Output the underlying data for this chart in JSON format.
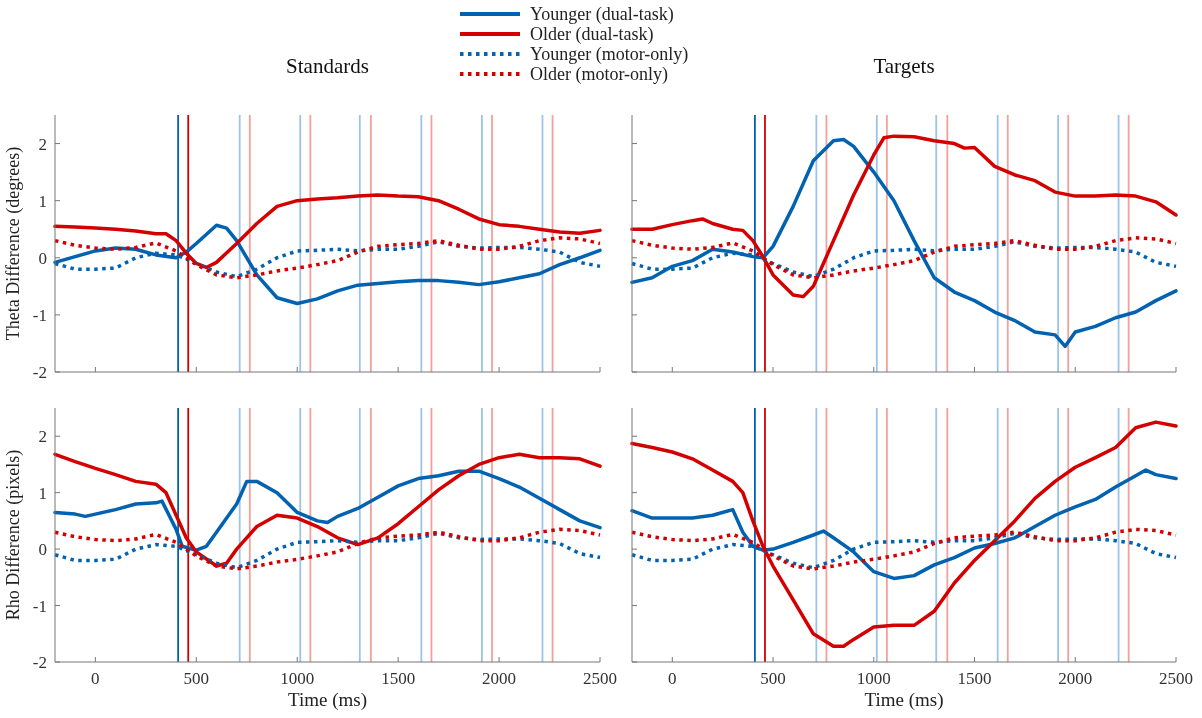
{
  "chart_data": [
    {
      "type": "line",
      "title": "Standards",
      "ylabel": "Theta Difference (degrees)",
      "xlim": [
        -200,
        2500
      ],
      "xticks": [
        0,
        500,
        1000,
        1500,
        2000,
        2500
      ],
      "ylim": [
        -2,
        2.5
      ],
      "yticks": [
        -2,
        -1,
        0,
        1,
        2
      ],
      "tick_labels": "y",
      "legend": "top",
      "grid": false,
      "ref_lines": [
        {
          "axis": "x",
          "value": 410,
          "color": "#0062b0"
        },
        {
          "axis": "x",
          "value": 460,
          "color": "#d40000"
        },
        {
          "axis": "x",
          "value": 715,
          "color": "#9dc3e6"
        },
        {
          "axis": "x",
          "value": 765,
          "color": "#f4a09a"
        },
        {
          "axis": "x",
          "value": 1015,
          "color": "#9dc3e6"
        },
        {
          "axis": "x",
          "value": 1065,
          "color": "#f4a09a"
        },
        {
          "axis": "x",
          "value": 1310,
          "color": "#9dc3e6"
        },
        {
          "axis": "x",
          "value": 1365,
          "color": "#f4a09a"
        },
        {
          "axis": "x",
          "value": 1615,
          "color": "#9dc3e6"
        },
        {
          "axis": "x",
          "value": 1665,
          "color": "#f4a09a"
        },
        {
          "axis": "x",
          "value": 1915,
          "color": "#9dc3e6"
        },
        {
          "axis": "x",
          "value": 1965,
          "color": "#f4a09a"
        },
        {
          "axis": "x",
          "value": 2215,
          "color": "#9dc3e6"
        },
        {
          "axis": "x",
          "value": 2265,
          "color": "#f4a09a"
        }
      ],
      "series": [
        {
          "name": "Younger (dual-task)",
          "color": "#0062b0",
          "line_style": "solid",
          "x": [
            -200,
            -100,
            0,
            100,
            200,
            300,
            400,
            450,
            500,
            600,
            650,
            700,
            800,
            900,
            1000,
            1100,
            1200,
            1300,
            1400,
            1500,
            1600,
            1700,
            1800,
            1900,
            2000,
            2100,
            2200,
            2300,
            2400,
            2500
          ],
          "values": [
            -0.08,
            0.02,
            0.12,
            0.17,
            0.15,
            0.05,
            0.0,
            0.1,
            0.25,
            0.57,
            0.52,
            0.3,
            -0.3,
            -0.7,
            -0.8,
            -0.72,
            -0.58,
            -0.48,
            -0.45,
            -0.42,
            -0.4,
            -0.4,
            -0.43,
            -0.47,
            -0.42,
            -0.35,
            -0.28,
            -0.12,
            0.0,
            0.13
          ]
        },
        {
          "name": "Older (dual-task)",
          "color": "#d40000",
          "line_style": "solid",
          "x": [
            -200,
            -100,
            0,
            100,
            200,
            300,
            350,
            400,
            450,
            500,
            550,
            600,
            700,
            800,
            900,
            1000,
            1100,
            1200,
            1300,
            1400,
            1500,
            1600,
            1700,
            1800,
            1900,
            2000,
            2100,
            2200,
            2300,
            2400,
            2500
          ],
          "values": [
            0.55,
            0.54,
            0.52,
            0.5,
            0.47,
            0.42,
            0.42,
            0.3,
            0.08,
            -0.1,
            -0.17,
            -0.08,
            0.25,
            0.6,
            0.9,
            1.0,
            1.03,
            1.05,
            1.08,
            1.1,
            1.08,
            1.07,
            1.0,
            0.85,
            0.68,
            0.58,
            0.55,
            0.5,
            0.45,
            0.43,
            0.48
          ]
        },
        {
          "name": "Younger (motor-only)",
          "color": "#0062b0",
          "line_style": "dotted",
          "x": [
            -200,
            -100,
            0,
            100,
            200,
            300,
            400,
            500,
            600,
            700,
            800,
            900,
            1000,
            1100,
            1200,
            1300,
            1400,
            1500,
            1600,
            1700,
            1800,
            1900,
            2000,
            2100,
            2200,
            2300,
            2400,
            2500
          ],
          "values": [
            -0.1,
            -0.2,
            -0.2,
            -0.18,
            0.0,
            0.08,
            0.05,
            -0.1,
            -0.25,
            -0.33,
            -0.2,
            0.0,
            0.12,
            0.13,
            0.15,
            0.12,
            0.15,
            0.15,
            0.2,
            0.28,
            0.2,
            0.17,
            0.18,
            0.18,
            0.15,
            0.1,
            -0.08,
            -0.15
          ]
        },
        {
          "name": "Older (motor-only)",
          "color": "#d40000",
          "line_style": "dotted",
          "x": [
            -200,
            -100,
            0,
            100,
            200,
            300,
            400,
            500,
            600,
            700,
            800,
            900,
            1000,
            1100,
            1200,
            1300,
            1400,
            1500,
            1600,
            1700,
            1800,
            1900,
            2000,
            2100,
            2200,
            2300,
            2400,
            2500
          ],
          "values": [
            0.3,
            0.22,
            0.17,
            0.15,
            0.18,
            0.26,
            0.12,
            -0.12,
            -0.3,
            -0.35,
            -0.3,
            -0.23,
            -0.18,
            -0.12,
            -0.05,
            0.1,
            0.2,
            0.23,
            0.25,
            0.3,
            0.22,
            0.15,
            0.15,
            0.2,
            0.3,
            0.35,
            0.33,
            0.25
          ]
        }
      ]
    },
    {
      "type": "line",
      "title": "Targets",
      "xlim": [
        -200,
        2500
      ],
      "xticks": [
        0,
        500,
        1000,
        1500,
        2000,
        2500
      ],
      "ylim": [
        -2,
        2.5
      ],
      "yticks": [
        -2,
        -1,
        0,
        1,
        2
      ],
      "tick_labels": false,
      "grid": false,
      "ref_lines": [
        {
          "axis": "x",
          "value": 410,
          "color": "#0062b0"
        },
        {
          "axis": "x",
          "value": 460,
          "color": "#d40000"
        },
        {
          "axis": "x",
          "value": 715,
          "color": "#9dc3e6"
        },
        {
          "axis": "x",
          "value": 765,
          "color": "#f4a09a"
        },
        {
          "axis": "x",
          "value": 1015,
          "color": "#9dc3e6"
        },
        {
          "axis": "x",
          "value": 1065,
          "color": "#f4a09a"
        },
        {
          "axis": "x",
          "value": 1310,
          "color": "#9dc3e6"
        },
        {
          "axis": "x",
          "value": 1365,
          "color": "#f4a09a"
        },
        {
          "axis": "x",
          "value": 1615,
          "color": "#9dc3e6"
        },
        {
          "axis": "x",
          "value": 1665,
          "color": "#f4a09a"
        },
        {
          "axis": "x",
          "value": 1915,
          "color": "#9dc3e6"
        },
        {
          "axis": "x",
          "value": 1965,
          "color": "#f4a09a"
        },
        {
          "axis": "x",
          "value": 2215,
          "color": "#9dc3e6"
        },
        {
          "axis": "x",
          "value": 2265,
          "color": "#f4a09a"
        }
      ],
      "series": [
        {
          "color": "#0062b0",
          "line_style": "solid",
          "x": [
            -200,
            -100,
            0,
            100,
            200,
            300,
            400,
            450,
            500,
            600,
            700,
            800,
            850,
            900,
            1000,
            1100,
            1200,
            1300,
            1400,
            1500,
            1600,
            1700,
            1800,
            1900,
            1950,
            2000,
            2100,
            2200,
            2300,
            2400,
            2500
          ],
          "values": [
            -0.43,
            -0.35,
            -0.15,
            -0.05,
            0.15,
            0.1,
            0.02,
            0.0,
            0.2,
            0.9,
            1.7,
            2.05,
            2.07,
            1.95,
            1.5,
            1.0,
            0.3,
            -0.35,
            -0.6,
            -0.75,
            -0.95,
            -1.1,
            -1.3,
            -1.35,
            -1.55,
            -1.3,
            -1.2,
            -1.05,
            -0.95,
            -0.75,
            -0.58
          ]
        },
        {
          "color": "#d40000",
          "line_style": "solid",
          "x": [
            -200,
            -100,
            0,
            100,
            150,
            200,
            300,
            350,
            400,
            450,
            500,
            600,
            650,
            700,
            800,
            900,
            1000,
            1050,
            1100,
            1200,
            1300,
            1400,
            1450,
            1500,
            1600,
            1700,
            1800,
            1900,
            2000,
            2100,
            2200,
            2300,
            2400,
            2500
          ],
          "values": [
            0.5,
            0.5,
            0.58,
            0.65,
            0.68,
            0.6,
            0.5,
            0.48,
            0.3,
            0.02,
            -0.3,
            -0.65,
            -0.68,
            -0.5,
            0.3,
            1.1,
            1.8,
            2.1,
            2.13,
            2.12,
            2.05,
            2.0,
            1.92,
            1.93,
            1.6,
            1.45,
            1.35,
            1.15,
            1.08,
            1.08,
            1.1,
            1.08,
            0.98,
            0.75
          ]
        },
        {
          "color": "#0062b0",
          "line_style": "dotted",
          "x": [
            -200,
            -100,
            0,
            100,
            200,
            300,
            400,
            500,
            600,
            700,
            800,
            900,
            1000,
            1100,
            1200,
            1300,
            1400,
            1500,
            1600,
            1700,
            1800,
            1900,
            2000,
            2100,
            2200,
            2300,
            2400,
            2500
          ],
          "values": [
            -0.1,
            -0.2,
            -0.2,
            -0.18,
            0.0,
            0.08,
            0.05,
            -0.1,
            -0.25,
            -0.33,
            -0.2,
            0.0,
            0.12,
            0.13,
            0.15,
            0.12,
            0.15,
            0.15,
            0.2,
            0.28,
            0.2,
            0.17,
            0.18,
            0.18,
            0.15,
            0.1,
            -0.08,
            -0.15
          ]
        },
        {
          "color": "#d40000",
          "line_style": "dotted",
          "x": [
            -200,
            -100,
            0,
            100,
            200,
            300,
            400,
            500,
            600,
            700,
            800,
            900,
            1000,
            1100,
            1200,
            1300,
            1400,
            1500,
            1600,
            1700,
            1800,
            1900,
            2000,
            2100,
            2200,
            2300,
            2400,
            2500
          ],
          "values": [
            0.3,
            0.22,
            0.17,
            0.15,
            0.18,
            0.26,
            0.12,
            -0.12,
            -0.3,
            -0.35,
            -0.3,
            -0.23,
            -0.18,
            -0.12,
            -0.05,
            0.1,
            0.2,
            0.23,
            0.25,
            0.3,
            0.22,
            0.15,
            0.15,
            0.2,
            0.3,
            0.35,
            0.33,
            0.25
          ]
        }
      ]
    },
    {
      "type": "line",
      "xlabel": "Time (ms)",
      "ylabel": "Rho Difference (pixels)",
      "xlim": [
        -200,
        2500
      ],
      "xticks": [
        0,
        500,
        1000,
        1500,
        2000,
        2500
      ],
      "ylim": [
        -2,
        2.5
      ],
      "yticks": [
        -2,
        -1,
        0,
        1,
        2
      ],
      "grid": false,
      "ref_lines": [
        {
          "axis": "x",
          "value": 410,
          "color": "#0062b0"
        },
        {
          "axis": "x",
          "value": 460,
          "color": "#d40000"
        },
        {
          "axis": "x",
          "value": 715,
          "color": "#9dc3e6"
        },
        {
          "axis": "x",
          "value": 765,
          "color": "#f4a09a"
        },
        {
          "axis": "x",
          "value": 1015,
          "color": "#9dc3e6"
        },
        {
          "axis": "x",
          "value": 1065,
          "color": "#f4a09a"
        },
        {
          "axis": "x",
          "value": 1310,
          "color": "#9dc3e6"
        },
        {
          "axis": "x",
          "value": 1365,
          "color": "#f4a09a"
        },
        {
          "axis": "x",
          "value": 1615,
          "color": "#9dc3e6"
        },
        {
          "axis": "x",
          "value": 1665,
          "color": "#f4a09a"
        },
        {
          "axis": "x",
          "value": 1915,
          "color": "#9dc3e6"
        },
        {
          "axis": "x",
          "value": 1965,
          "color": "#f4a09a"
        },
        {
          "axis": "x",
          "value": 2215,
          "color": "#9dc3e6"
        },
        {
          "axis": "x",
          "value": 2265,
          "color": "#f4a09a"
        }
      ],
      "series": [
        {
          "color": "#0062b0",
          "line_style": "solid",
          "x": [
            -200,
            -100,
            -50,
            0,
            100,
            200,
            300,
            330,
            400,
            430,
            500,
            550,
            600,
            700,
            750,
            800,
            900,
            1000,
            1100,
            1150,
            1200,
            1300,
            1400,
            1500,
            1600,
            1700,
            1800,
            1900,
            2000,
            2100,
            2200,
            2300,
            2400,
            2500
          ],
          "values": [
            0.65,
            0.62,
            0.58,
            0.62,
            0.7,
            0.8,
            0.82,
            0.85,
            0.35,
            0.05,
            -0.02,
            0.05,
            0.3,
            0.8,
            1.2,
            1.2,
            1.0,
            0.65,
            0.5,
            0.47,
            0.58,
            0.72,
            0.92,
            1.12,
            1.25,
            1.3,
            1.38,
            1.38,
            1.25,
            1.1,
            0.9,
            0.7,
            0.5,
            0.38
          ]
        },
        {
          "color": "#d40000",
          "line_style": "solid",
          "x": [
            -200,
            -100,
            0,
            100,
            200,
            300,
            350,
            400,
            450,
            500,
            600,
            650,
            700,
            800,
            900,
            1000,
            1100,
            1200,
            1300,
            1400,
            1500,
            1600,
            1700,
            1800,
            1900,
            2000,
            2100,
            2200,
            2300,
            2400,
            2500
          ],
          "values": [
            1.68,
            1.55,
            1.43,
            1.32,
            1.2,
            1.15,
            1.0,
            0.6,
            0.2,
            -0.05,
            -0.3,
            -0.25,
            0.0,
            0.4,
            0.6,
            0.55,
            0.4,
            0.2,
            0.08,
            0.2,
            0.45,
            0.75,
            1.05,
            1.3,
            1.5,
            1.62,
            1.68,
            1.62,
            1.62,
            1.6,
            1.47
          ]
        },
        {
          "color": "#0062b0",
          "line_style": "dotted",
          "x": [
            -200,
            -100,
            0,
            100,
            200,
            300,
            400,
            500,
            600,
            700,
            800,
            900,
            1000,
            1100,
            1200,
            1300,
            1400,
            1500,
            1600,
            1700,
            1800,
            1900,
            2000,
            2100,
            2200,
            2300,
            2400,
            2500
          ],
          "values": [
            -0.1,
            -0.2,
            -0.2,
            -0.18,
            0.0,
            0.08,
            0.05,
            -0.1,
            -0.25,
            -0.33,
            -0.2,
            0.0,
            0.12,
            0.13,
            0.15,
            0.12,
            0.15,
            0.15,
            0.2,
            0.28,
            0.2,
            0.17,
            0.18,
            0.18,
            0.15,
            0.1,
            -0.08,
            -0.15
          ]
        },
        {
          "color": "#d40000",
          "line_style": "dotted",
          "x": [
            -200,
            -100,
            0,
            100,
            200,
            300,
            400,
            500,
            600,
            700,
            800,
            900,
            1000,
            1100,
            1200,
            1300,
            1400,
            1500,
            1600,
            1700,
            1800,
            1900,
            2000,
            2100,
            2200,
            2300,
            2400,
            2500
          ],
          "values": [
            0.3,
            0.22,
            0.17,
            0.15,
            0.18,
            0.26,
            0.12,
            -0.12,
            -0.3,
            -0.35,
            -0.3,
            -0.23,
            -0.18,
            -0.12,
            -0.05,
            0.1,
            0.2,
            0.23,
            0.25,
            0.3,
            0.22,
            0.15,
            0.15,
            0.2,
            0.3,
            0.35,
            0.33,
            0.25
          ]
        }
      ]
    },
    {
      "type": "line",
      "xlabel": "Time (ms)",
      "xlim": [
        -200,
        2500
      ],
      "xticks": [
        0,
        500,
        1000,
        1500,
        2000,
        2500
      ],
      "ylim": [
        -2,
        2.5
      ],
      "yticks": [
        -2,
        -1,
        0,
        1,
        2
      ],
      "tick_labels": "x",
      "grid": false,
      "ref_lines": [
        {
          "axis": "x",
          "value": 410,
          "color": "#0062b0"
        },
        {
          "axis": "x",
          "value": 460,
          "color": "#d40000"
        },
        {
          "axis": "x",
          "value": 715,
          "color": "#9dc3e6"
        },
        {
          "axis": "x",
          "value": 765,
          "color": "#f4a09a"
        },
        {
          "axis": "x",
          "value": 1015,
          "color": "#9dc3e6"
        },
        {
          "axis": "x",
          "value": 1065,
          "color": "#f4a09a"
        },
        {
          "axis": "x",
          "value": 1310,
          "color": "#9dc3e6"
        },
        {
          "axis": "x",
          "value": 1365,
          "color": "#f4a09a"
        },
        {
          "axis": "x",
          "value": 1615,
          "color": "#9dc3e6"
        },
        {
          "axis": "x",
          "value": 1665,
          "color": "#f4a09a"
        },
        {
          "axis": "x",
          "value": 1915,
          "color": "#9dc3e6"
        },
        {
          "axis": "x",
          "value": 1965,
          "color": "#f4a09a"
        },
        {
          "axis": "x",
          "value": 2215,
          "color": "#9dc3e6"
        },
        {
          "axis": "x",
          "value": 2265,
          "color": "#f4a09a"
        }
      ],
      "series": [
        {
          "color": "#0062b0",
          "line_style": "solid",
          "x": [
            -200,
            -100,
            0,
            100,
            200,
            300,
            350,
            400,
            450,
            500,
            600,
            700,
            750,
            800,
            900,
            1000,
            1100,
            1200,
            1300,
            1400,
            1500,
            1600,
            1700,
            1800,
            1900,
            2000,
            2100,
            2200,
            2300,
            2350,
            2400,
            2500
          ],
          "values": [
            0.68,
            0.55,
            0.55,
            0.55,
            0.6,
            0.7,
            0.3,
            0.05,
            -0.02,
            0.0,
            0.12,
            0.25,
            0.32,
            0.2,
            -0.05,
            -0.4,
            -0.52,
            -0.47,
            -0.28,
            -0.15,
            0.02,
            0.1,
            0.2,
            0.4,
            0.6,
            0.75,
            0.88,
            1.1,
            1.3,
            1.4,
            1.32,
            1.25
          ]
        },
        {
          "color": "#d40000",
          "line_style": "solid",
          "x": [
            -200,
            -100,
            0,
            100,
            200,
            300,
            350,
            400,
            450,
            500,
            600,
            700,
            800,
            850,
            900,
            1000,
            1100,
            1200,
            1300,
            1400,
            1500,
            1600,
            1700,
            1800,
            1900,
            2000,
            2100,
            2200,
            2300,
            2400,
            2500
          ],
          "values": [
            1.87,
            1.8,
            1.72,
            1.6,
            1.4,
            1.2,
            1.0,
            0.5,
            0.05,
            -0.3,
            -0.9,
            -1.5,
            -1.72,
            -1.72,
            -1.6,
            -1.38,
            -1.35,
            -1.35,
            -1.1,
            -0.6,
            -0.2,
            0.15,
            0.5,
            0.9,
            1.2,
            1.45,
            1.62,
            1.8,
            2.15,
            2.25,
            2.18
          ]
        },
        {
          "color": "#0062b0",
          "line_style": "dotted",
          "x": [
            -200,
            -100,
            0,
            100,
            200,
            300,
            400,
            500,
            600,
            700,
            800,
            900,
            1000,
            1100,
            1200,
            1300,
            1400,
            1500,
            1600,
            1700,
            1800,
            1900,
            2000,
            2100,
            2200,
            2300,
            2400,
            2500
          ],
          "values": [
            -0.1,
            -0.2,
            -0.2,
            -0.18,
            0.0,
            0.08,
            0.05,
            -0.1,
            -0.25,
            -0.33,
            -0.2,
            0.0,
            0.12,
            0.13,
            0.15,
            0.12,
            0.15,
            0.15,
            0.2,
            0.28,
            0.2,
            0.17,
            0.18,
            0.18,
            0.15,
            0.1,
            -0.08,
            -0.15
          ]
        },
        {
          "color": "#d40000",
          "line_style": "dotted",
          "x": [
            -200,
            -100,
            0,
            100,
            200,
            300,
            400,
            500,
            600,
            700,
            800,
            900,
            1000,
            1100,
            1200,
            1300,
            1400,
            1500,
            1600,
            1700,
            1800,
            1900,
            2000,
            2100,
            2200,
            2300,
            2400,
            2500
          ],
          "values": [
            0.3,
            0.22,
            0.17,
            0.15,
            0.18,
            0.26,
            0.12,
            -0.12,
            -0.3,
            -0.35,
            -0.3,
            -0.23,
            -0.18,
            -0.12,
            -0.05,
            0.1,
            0.2,
            0.23,
            0.25,
            0.3,
            0.22,
            0.15,
            0.15,
            0.2,
            0.3,
            0.35,
            0.33,
            0.25
          ]
        }
      ]
    }
  ]
}
